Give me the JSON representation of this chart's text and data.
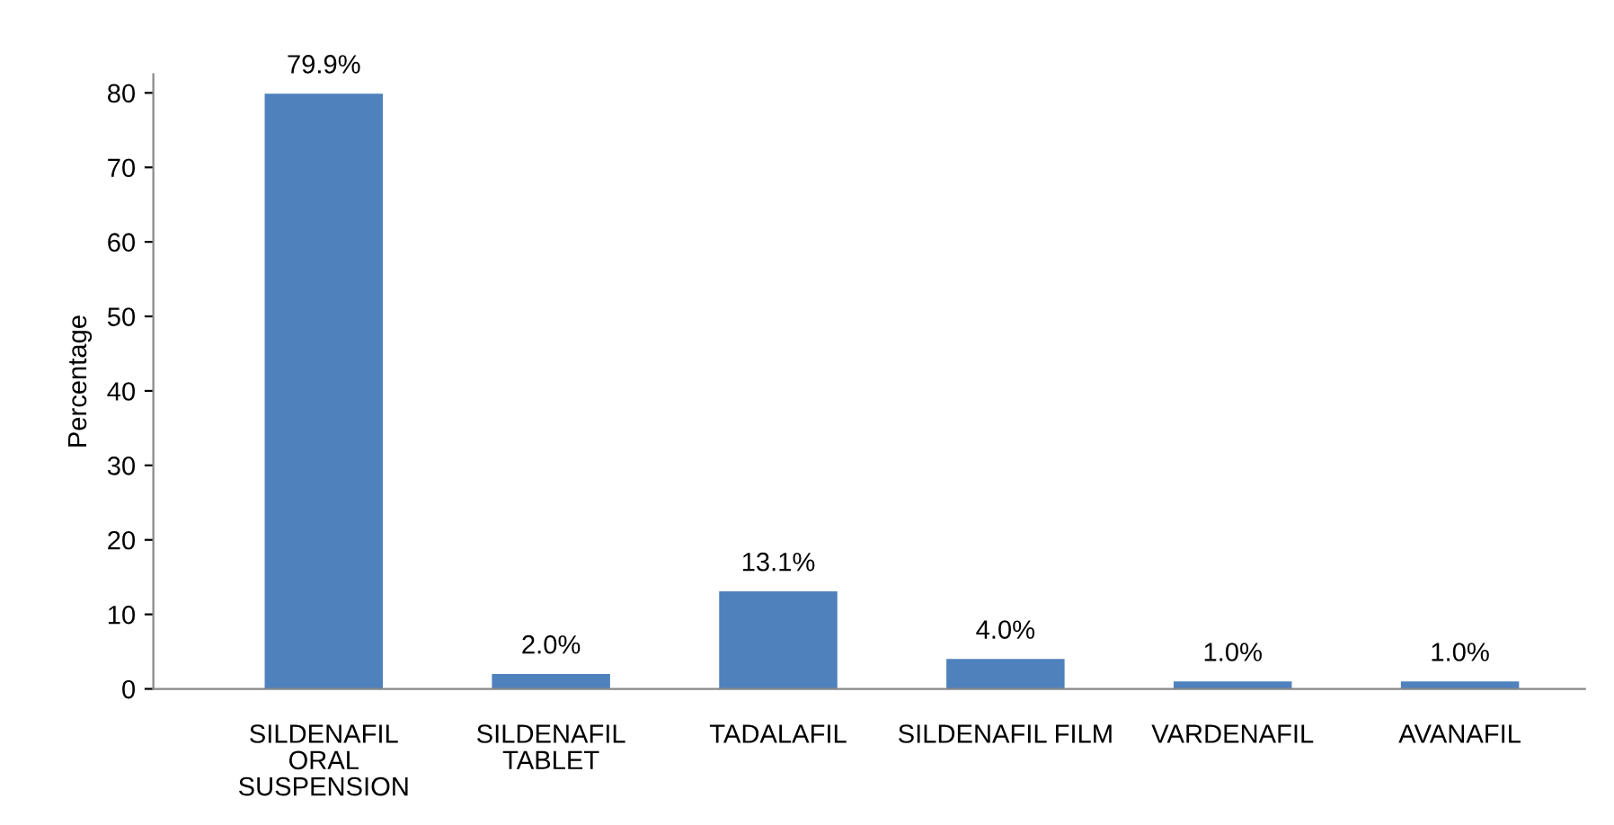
{
  "chart_data": {
    "type": "bar",
    "ylabel": "Percentage",
    "categories": [
      "SILDENAFIL\nORAL\nSUSPENSION",
      "SILDENAFIL\nTABLET",
      "TADALAFIL",
      "SILDENAFIL FILM",
      "VARDENAFIL",
      "AVANAFIL"
    ],
    "values": [
      79.9,
      2.0,
      13.1,
      4.0,
      1.0,
      1.0
    ],
    "value_labels": [
      "79.9%",
      "2.0%",
      "13.1%",
      "4.0%",
      "1.0%",
      "1.0%"
    ],
    "color": "#4f81bd",
    "ylim": [
      0,
      82.5
    ],
    "yticks": [
      0,
      10,
      20,
      30,
      40,
      50,
      60,
      70,
      80
    ],
    "grid": false
  }
}
